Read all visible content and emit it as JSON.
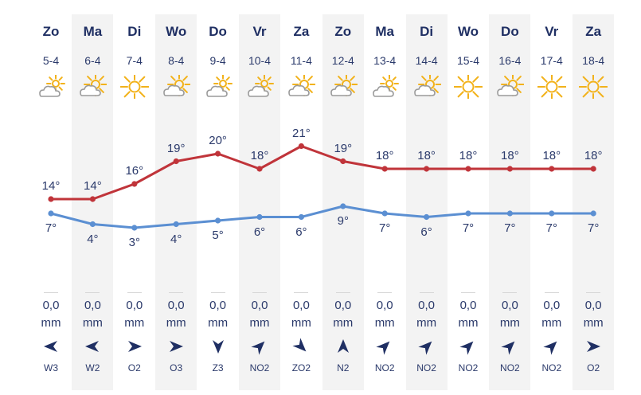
{
  "forecast": {
    "days": [
      {
        "day": "Zo",
        "date": "5-4",
        "icon": "sun-cloud-icon",
        "high": "14°",
        "low": "7°",
        "precip": "0,0",
        "unit": "mm",
        "wind": "W3",
        "wind_dir": "west"
      },
      {
        "day": "Ma",
        "date": "6-4",
        "icon": "cloud-sun-icon",
        "high": "14°",
        "low": "4°",
        "precip": "0,0",
        "unit": "mm",
        "wind": "W2",
        "wind_dir": "west"
      },
      {
        "day": "Di",
        "date": "7-4",
        "icon": "sun-icon",
        "high": "16°",
        "low": "3°",
        "precip": "0,0",
        "unit": "mm",
        "wind": "O2",
        "wind_dir": "east"
      },
      {
        "day": "Wo",
        "date": "8-4",
        "icon": "cloud-sun-icon",
        "high": "19°",
        "low": "4°",
        "precip": "0,0",
        "unit": "mm",
        "wind": "O3",
        "wind_dir": "east"
      },
      {
        "day": "Do",
        "date": "9-4",
        "icon": "sun-cloud-icon",
        "high": "20°",
        "low": "5°",
        "precip": "0,0",
        "unit": "mm",
        "wind": "Z3",
        "wind_dir": "south"
      },
      {
        "day": "Vr",
        "date": "10-4",
        "icon": "sun-cloud-icon",
        "high": "18°",
        "low": "6°",
        "precip": "0,0",
        "unit": "mm",
        "wind": "NO2",
        "wind_dir": "northeast"
      },
      {
        "day": "Za",
        "date": "11-4",
        "icon": "cloud-sun-icon",
        "high": "21°",
        "low": "6°",
        "precip": "0,0",
        "unit": "mm",
        "wind": "ZO2",
        "wind_dir": "southeast"
      },
      {
        "day": "Zo",
        "date": "12-4",
        "icon": "cloud-sun-icon",
        "high": "19°",
        "low": "9°",
        "precip": "0,0",
        "unit": "mm",
        "wind": "N2",
        "wind_dir": "north"
      },
      {
        "day": "Ma",
        "date": "13-4",
        "icon": "sun-cloud-icon",
        "high": "18°",
        "low": "7°",
        "precip": "0,0",
        "unit": "mm",
        "wind": "NO2",
        "wind_dir": "northeast"
      },
      {
        "day": "Di",
        "date": "14-4",
        "icon": "cloud-sun-icon",
        "high": "18°",
        "low": "6°",
        "precip": "0,0",
        "unit": "mm",
        "wind": "NO2",
        "wind_dir": "northeast"
      },
      {
        "day": "Wo",
        "date": "15-4",
        "icon": "sun-icon",
        "high": "18°",
        "low": "7°",
        "precip": "0,0",
        "unit": "mm",
        "wind": "NO2",
        "wind_dir": "northeast"
      },
      {
        "day": "Do",
        "date": "16-4",
        "icon": "cloud-sun-icon",
        "high": "18°",
        "low": "7°",
        "precip": "0,0",
        "unit": "mm",
        "wind": "NO2",
        "wind_dir": "northeast"
      },
      {
        "day": "Vr",
        "date": "17-4",
        "icon": "sun-icon",
        "high": "18°",
        "low": "7°",
        "precip": "0,0",
        "unit": "mm",
        "wind": "NO2",
        "wind_dir": "northeast"
      },
      {
        "day": "Za",
        "date": "18-4",
        "icon": "sun-icon",
        "high": "18°",
        "low": "7°",
        "precip": "0,0",
        "unit": "mm",
        "wind": "O2",
        "wind_dir": "east"
      }
    ]
  },
  "chart_data": {
    "type": "line",
    "categories": [
      "5-4",
      "6-4",
      "7-4",
      "8-4",
      "9-4",
      "10-4",
      "11-4",
      "12-4",
      "13-4",
      "14-4",
      "15-4",
      "16-4",
      "17-4",
      "18-4"
    ],
    "series": [
      {
        "values": [
          14,
          14,
          16,
          19,
          20,
          18,
          21,
          19,
          18,
          18,
          18,
          18,
          18,
          18
        ]
      },
      {
        "values": [
          7,
          4,
          3,
          4,
          5,
          6,
          6,
          9,
          7,
          6,
          7,
          7,
          7,
          7
        ]
      }
    ]
  },
  "colors": {
    "high_line": "#c0343a",
    "low_line": "#5b8fd2",
    "text": "#1f2f63",
    "sun": "#f2b21b",
    "cloud": "#9a9a9a",
    "column_shade": "#f3f3f3"
  }
}
